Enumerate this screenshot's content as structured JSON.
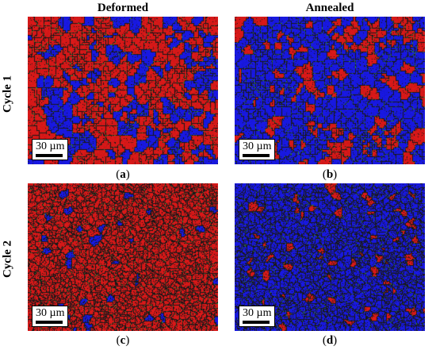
{
  "columns": {
    "deformed": "Deformed",
    "annealed": "Annealed"
  },
  "rows": {
    "cycle1": "Cycle 1",
    "cycle2": "Cycle 2"
  },
  "panels": [
    {
      "id": "a",
      "scale_label": "30 µm",
      "open": "(",
      "letter": "a",
      "close": ")",
      "colors": {
        "red_fraction": 0.62,
        "blue_fraction": 0.38
      }
    },
    {
      "id": "b",
      "scale_label": "30 µm",
      "open": "(",
      "letter": "b",
      "close": ")",
      "colors": {
        "red_fraction": 0.22,
        "blue_fraction": 0.78
      }
    },
    {
      "id": "c",
      "scale_label": "30 µm",
      "open": "(",
      "letter": "c",
      "close": ")",
      "colors": {
        "red_fraction": 0.95,
        "blue_fraction": 0.05
      }
    },
    {
      "id": "d",
      "scale_label": "30 µm",
      "open": "(",
      "letter": "d",
      "close": ")",
      "colors": {
        "red_fraction": 0.08,
        "blue_fraction": 0.92
      }
    }
  ],
  "palette": {
    "red": "#e41a1a",
    "blue": "#1a1aee",
    "boundary": "#1a1a1a",
    "green": "#2f8f2f"
  }
}
